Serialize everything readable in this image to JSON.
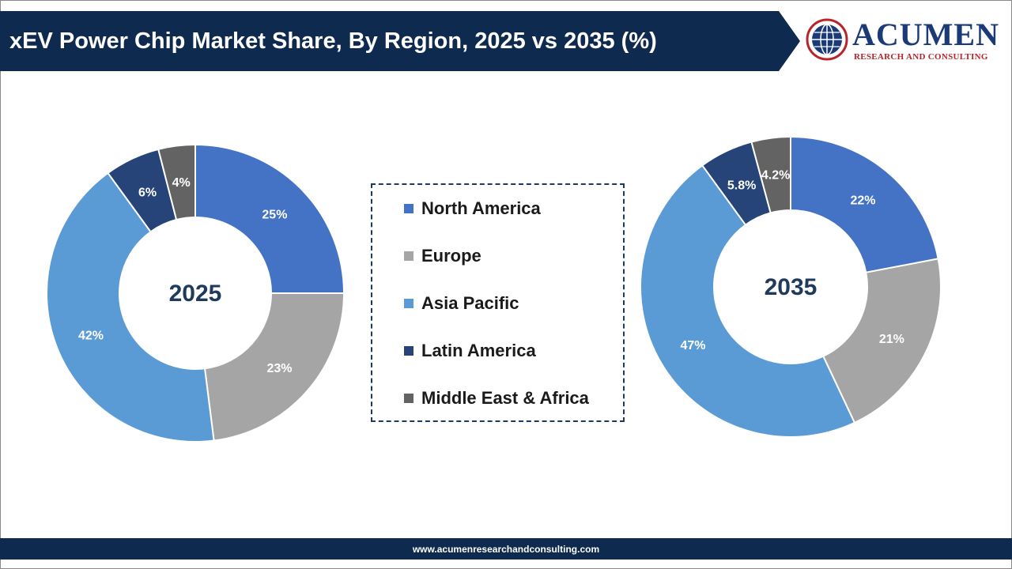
{
  "header": {
    "title": "xEV Power Chip Market Share, By Region, 2025 vs 2035 (%)"
  },
  "logo": {
    "word": "ACUMEN",
    "subtitle": "RESEARCH AND CONSULTING",
    "icon": "globe-icon"
  },
  "footer": {
    "url": "www.acumenresearchandconsulting.com"
  },
  "colors": {
    "header_bg": "#0f2a4f",
    "center_text": "#1f3a5c"
  },
  "chart_data": [
    {
      "type": "pie",
      "center_label": "2025",
      "categories": [
        "North America",
        "Europe",
        "Asia Pacific",
        "Latin America",
        "Middle East & Africa"
      ],
      "values": [
        25,
        23,
        42,
        6,
        4
      ],
      "labels": [
        "25%",
        "23%",
        "42%",
        "6%",
        "4%"
      ],
      "colors": [
        "#4472c4",
        "#a5a5a5",
        "#5b9bd5",
        "#264478",
        "#636363"
      ]
    },
    {
      "type": "pie",
      "center_label": "2035",
      "categories": [
        "North America",
        "Europe",
        "Asia Pacific",
        "Latin America",
        "Middle East & Africa"
      ],
      "values": [
        22,
        21,
        47,
        5.8,
        4.2
      ],
      "labels": [
        "22%",
        "21%",
        "47%",
        "5.8%",
        "4.2%"
      ],
      "colors": [
        "#4472c4",
        "#a5a5a5",
        "#5b9bd5",
        "#264478",
        "#636363"
      ]
    }
  ],
  "legend": {
    "items": [
      {
        "label": "North America",
        "color": "#4472c4"
      },
      {
        "label": "Europe",
        "color": "#a5a5a5"
      },
      {
        "label": "Asia Pacific",
        "color": "#5b9bd5"
      },
      {
        "label": "Latin America",
        "color": "#264478"
      },
      {
        "label": "Middle East & Africa",
        "color": "#636363"
      }
    ]
  }
}
